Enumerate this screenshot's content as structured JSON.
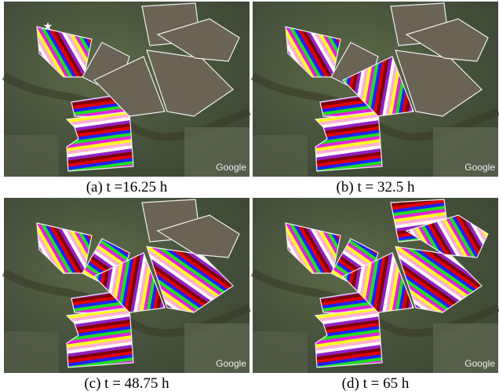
{
  "panels": [
    {
      "caption": "(a) t =16.25 h",
      "watermark": "Google"
    },
    {
      "caption": "(b) t = 32.5 h",
      "watermark": "Google"
    },
    {
      "caption": "(c) t = 48.75 h",
      "watermark": "Google"
    },
    {
      "caption": "(d) t = 65 h",
      "watermark": "Google"
    }
  ]
}
